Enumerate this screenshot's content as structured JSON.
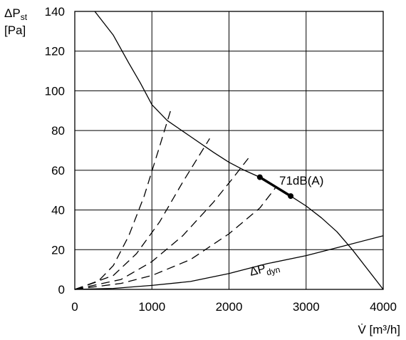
{
  "chart_data": {
    "type": "line",
    "title": "",
    "ylabel": {
      "main": "ΔP",
      "sub": "st",
      "unit": "[Pa]"
    },
    "xlabel": "V̇ [m³/h]",
    "xlim": [
      0,
      4000
    ],
    "ylim": [
      0,
      140
    ],
    "xticks": [
      "0",
      "1000",
      "2000",
      "3000",
      "4000"
    ],
    "yticks": [
      "0",
      "20",
      "40",
      "60",
      "80",
      "100",
      "120",
      "140"
    ],
    "grid": true,
    "series": [
      {
        "name": "",
        "style": "solid",
        "points": [
          [
            260,
            140
          ],
          [
            500,
            128
          ],
          [
            700,
            114
          ],
          [
            850,
            104
          ],
          [
            1000,
            93
          ],
          [
            1200,
            85
          ],
          [
            1500,
            77
          ],
          [
            1800,
            69
          ],
          [
            2000,
            64
          ],
          [
            2200,
            60
          ],
          [
            2400,
            56.5
          ],
          [
            2600,
            52
          ],
          [
            2800,
            47
          ],
          [
            3000,
            42
          ],
          [
            3200,
            36
          ],
          [
            3400,
            29
          ],
          [
            3600,
            20
          ],
          [
            3800,
            10
          ],
          [
            4000,
            0
          ]
        ]
      },
      {
        "name": "ΔP_dyn",
        "style": "solid",
        "points": [
          [
            0,
            0
          ],
          [
            500,
            0.5
          ],
          [
            1000,
            2
          ],
          [
            1500,
            4
          ],
          [
            2000,
            8
          ],
          [
            2500,
            13
          ],
          [
            3000,
            17
          ],
          [
            3500,
            22
          ],
          [
            4000,
            27
          ]
        ]
      },
      {
        "name": "",
        "style": "dashed",
        "points": [
          [
            0,
            0
          ],
          [
            300,
            4
          ],
          [
            500,
            12
          ],
          [
            700,
            27
          ],
          [
            900,
            47
          ],
          [
            1100,
            72
          ],
          [
            1250,
            91
          ]
        ]
      },
      {
        "name": "",
        "style": "dashed",
        "points": [
          [
            0,
            0
          ],
          [
            500,
            7
          ],
          [
            800,
            18
          ],
          [
            1100,
            34
          ],
          [
            1400,
            54
          ],
          [
            1750,
            76
          ]
        ]
      },
      {
        "name": "",
        "style": "dashed",
        "points": [
          [
            0,
            0
          ],
          [
            600,
            5
          ],
          [
            1000,
            14
          ],
          [
            1400,
            27
          ],
          [
            1800,
            44
          ],
          [
            2050,
            56
          ],
          [
            2250,
            66
          ]
        ]
      },
      {
        "name": "",
        "style": "dashed",
        "points": [
          [
            0,
            0
          ],
          [
            600,
            3
          ],
          [
            1000,
            7
          ],
          [
            1500,
            15
          ],
          [
            2000,
            28
          ],
          [
            2400,
            41
          ],
          [
            2600,
            51
          ]
        ]
      }
    ],
    "highlight": {
      "label": "71dB(A)",
      "points": [
        [
          2400,
          56.5
        ],
        [
          2800,
          47
        ]
      ]
    },
    "annotations": [
      {
        "text": "ΔP",
        "sub": "dyn",
        "x": 2250,
        "y": 8
      }
    ]
  }
}
